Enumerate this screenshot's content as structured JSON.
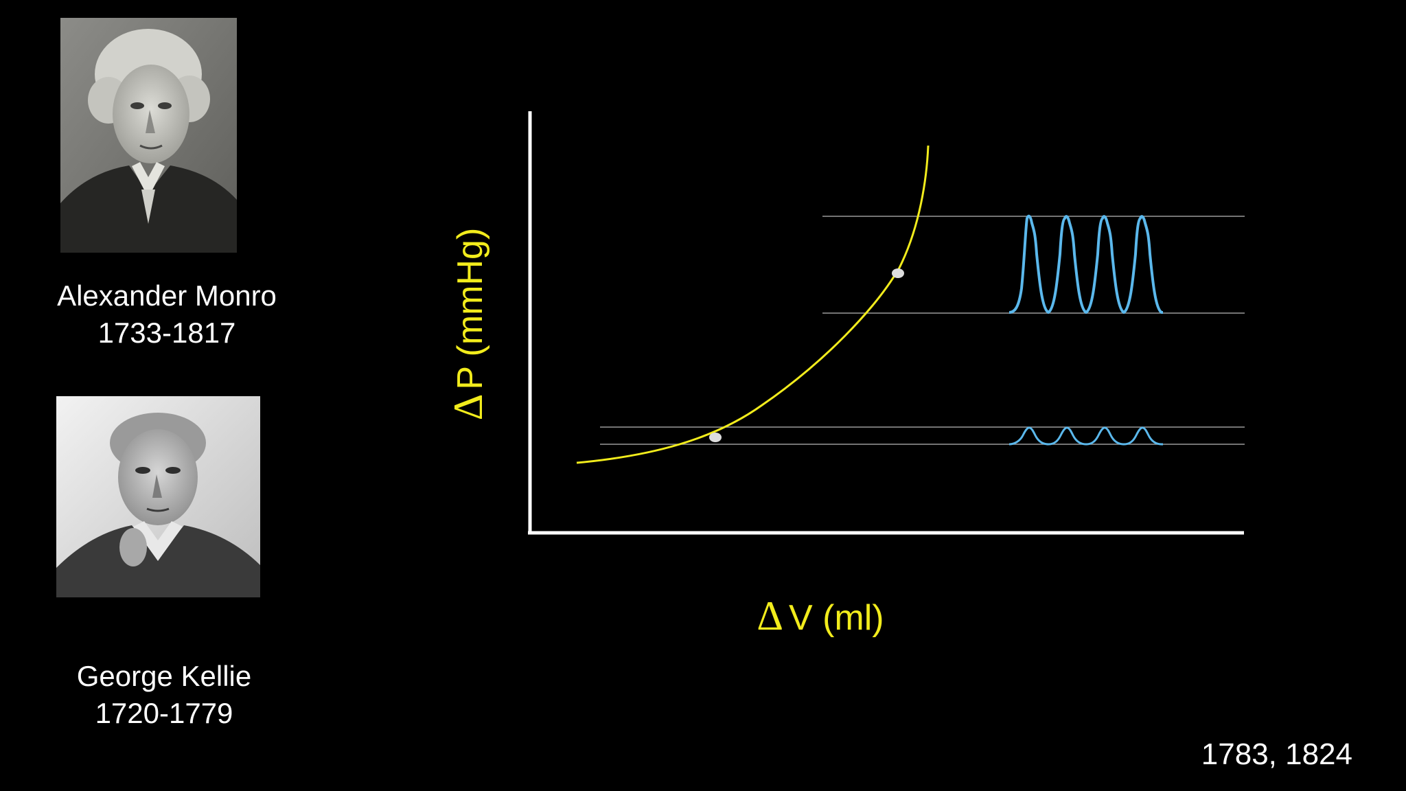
{
  "slide": {
    "people": [
      {
        "name": "Alexander Monro",
        "years": "1733-1817"
      },
      {
        "name": "George Kellie",
        "years": "1720-1779"
      }
    ],
    "footer_years": "1783, 1824"
  },
  "diagram": {
    "y_axis": {
      "delta": "Δ",
      "label": "P (mmHg)"
    },
    "x_axis": {
      "delta": "Δ",
      "label": "V (ml)"
    },
    "colors": {
      "curve": "#f2ec1c",
      "pulse": "#5bb8ec",
      "axes": "#ffffff",
      "reference_lines": "#9a9a9a",
      "points": "#dddddd"
    },
    "pulse_groups": [
      {
        "level": "high",
        "peaks": 4
      },
      {
        "level": "low",
        "peaks": 4
      }
    ]
  }
}
